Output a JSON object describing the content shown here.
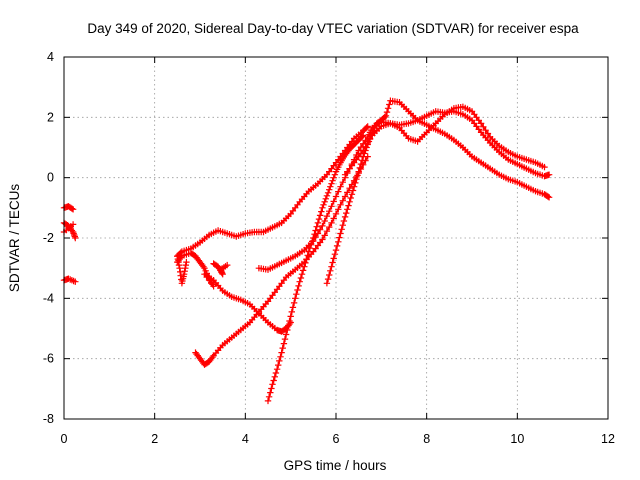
{
  "chart_data": {
    "type": "scatter",
    "title": "Day 349 of 2020, Sidereal Day-to-day VTEC variation (SDTVAR) for receiver espa",
    "xlabel": "GPS time / hours",
    "ylabel": "SDTVAR / TECUs",
    "xlim": [
      0,
      12
    ],
    "ylim": [
      -8,
      4
    ],
    "x_ticks": [
      0,
      2,
      4,
      6,
      8,
      10,
      12
    ],
    "y_ticks": [
      -8,
      -6,
      -4,
      -2,
      0,
      2,
      4
    ],
    "grid": true,
    "marker": "plus",
    "color": "#ff0000",
    "series": [
      {
        "x": [
          0.0,
          0.1,
          0.2
        ],
        "y": [
          -1.0,
          -0.95,
          -1.05
        ]
      },
      {
        "x": [
          0.0,
          0.1,
          0.2,
          0.25
        ],
        "y": [
          -1.5,
          -1.6,
          -1.8,
          -2.0
        ]
      },
      {
        "x": [
          0.0,
          0.2
        ],
        "y": [
          -1.8,
          -1.55
        ]
      },
      {
        "x": [
          0.0,
          0.1,
          0.25
        ],
        "y": [
          -3.4,
          -3.35,
          -3.45
        ]
      },
      {
        "x": [
          2.5,
          2.6,
          2.8,
          3.0,
          3.2,
          3.4,
          3.6,
          3.8,
          4.0,
          4.2,
          4.4,
          4.6,
          4.8,
          5.0,
          5.2,
          5.4,
          5.6,
          5.8,
          6.0,
          6.2,
          6.4,
          6.6,
          6.7
        ],
        "y": [
          -2.6,
          -2.45,
          -2.35,
          -2.15,
          -1.9,
          -1.75,
          -1.85,
          -1.95,
          -1.85,
          -1.8,
          -1.8,
          -1.65,
          -1.5,
          -1.2,
          -0.8,
          -0.45,
          -0.2,
          0.1,
          0.5,
          0.9,
          1.3,
          1.55,
          1.7
        ]
      },
      {
        "x": [
          2.5,
          2.6,
          2.8,
          2.9,
          3.0,
          3.1,
          3.2,
          3.3,
          3.1,
          3.3,
          3.5,
          3.7,
          3.9,
          4.1,
          4.3,
          4.5,
          4.7,
          4.8,
          4.9,
          5.0
        ],
        "y": [
          -2.8,
          -2.6,
          -2.5,
          -2.6,
          -2.8,
          -3.0,
          -3.35,
          -3.6,
          -3.2,
          -3.4,
          -3.75,
          -3.95,
          -4.05,
          -4.2,
          -4.5,
          -4.8,
          -5.05,
          -5.1,
          -5.0,
          -4.8
        ]
      },
      {
        "x": [
          2.5,
          2.55,
          2.6,
          2.65,
          2.7
        ],
        "y": [
          -2.6,
          -3.0,
          -3.5,
          -3.2,
          -2.8
        ]
      },
      {
        "x": [
          3.3,
          3.4,
          3.5,
          3.45,
          3.6
        ],
        "y": [
          -2.85,
          -2.95,
          -3.2,
          -3.05,
          -2.9
        ]
      },
      {
        "x": [
          2.9,
          3.0,
          3.1,
          3.2,
          3.3,
          3.5,
          3.7,
          3.9,
          4.1,
          4.3,
          4.5,
          4.7,
          4.9,
          5.1,
          5.3,
          5.5,
          5.7,
          5.9,
          6.1,
          6.3,
          6.5,
          6.7
        ],
        "y": [
          -5.8,
          -6.0,
          -6.2,
          -6.1,
          -5.9,
          -5.55,
          -5.3,
          -5.05,
          -4.8,
          -4.45,
          -4.1,
          -3.7,
          -3.3,
          -3.05,
          -2.8,
          -2.45,
          -2.05,
          -1.5,
          -0.9,
          -0.35,
          0.15,
          0.7
        ]
      },
      {
        "x": [
          4.5,
          4.6,
          4.7,
          4.8,
          4.9,
          5.0,
          5.1,
          5.2,
          5.3,
          5.4,
          5.5,
          5.6,
          5.7,
          5.8,
          5.9,
          6.0,
          6.1,
          6.2,
          6.3,
          6.4,
          6.5,
          6.6
        ],
        "y": [
          -7.4,
          -6.85,
          -6.35,
          -5.8,
          -5.2,
          -4.6,
          -4.0,
          -3.45,
          -2.95,
          -2.45,
          -2.0,
          -1.5,
          -1.0,
          -0.6,
          -0.2,
          0.2,
          0.5,
          0.75,
          0.95,
          1.1,
          1.25,
          1.4
        ]
      },
      {
        "x": [
          4.3,
          4.5,
          4.7,
          4.9,
          5.1,
          5.3,
          5.5,
          5.7,
          5.9,
          6.1,
          6.3,
          6.5,
          6.7,
          6.8,
          7.0,
          7.2,
          7.4,
          7.6,
          7.8,
          8.0,
          8.2,
          8.4,
          8.6,
          8.8,
          9.0,
          9.2,
          9.4,
          9.6,
          9.8,
          10.0,
          10.2,
          10.4,
          10.6,
          10.7
        ],
        "y": [
          -3.0,
          -3.05,
          -2.9,
          -2.75,
          -2.6,
          -2.4,
          -2.1,
          -1.6,
          -0.95,
          -0.3,
          0.3,
          0.9,
          1.35,
          1.65,
          1.85,
          1.8,
          1.75,
          1.8,
          1.9,
          2.05,
          2.2,
          2.15,
          2.2,
          2.1,
          1.9,
          1.5,
          1.15,
          0.85,
          0.6,
          0.45,
          0.3,
          0.15,
          0.05,
          0.1
        ]
      },
      {
        "x": [
          5.8,
          5.9,
          6.0,
          6.1,
          6.2,
          6.3,
          6.4,
          6.5,
          6.6,
          6.7,
          6.8,
          6.9,
          7.0,
          7.1,
          7.2,
          7.4,
          7.6,
          7.8,
          8.0,
          8.2,
          8.4,
          8.6,
          8.8,
          9.0,
          9.2,
          9.4,
          9.6,
          9.8,
          10.0,
          10.2,
          10.4,
          10.6,
          10.7
        ],
        "y": [
          -3.5,
          -2.95,
          -2.4,
          -1.85,
          -1.3,
          -0.8,
          -0.3,
          0.2,
          0.7,
          1.1,
          1.5,
          1.8,
          1.9,
          2.05,
          2.55,
          2.5,
          2.2,
          1.9,
          1.75,
          1.6,
          1.45,
          1.25,
          1.0,
          0.7,
          0.5,
          0.3,
          0.1,
          -0.05,
          -0.15,
          -0.3,
          -0.45,
          -0.55,
          -0.65
        ]
      },
      {
        "x": [
          6.2,
          6.4,
          6.6,
          6.8,
          7.0,
          7.2,
          7.4,
          7.6,
          7.8,
          8.0,
          8.2,
          8.4,
          8.6,
          8.8,
          9.0,
          9.2,
          9.4,
          9.6,
          9.8,
          10.0,
          10.2,
          10.4,
          10.6
        ],
        "y": [
          0.1,
          0.5,
          0.9,
          1.4,
          1.7,
          1.8,
          1.65,
          1.3,
          1.2,
          1.5,
          1.8,
          2.1,
          2.3,
          2.35,
          2.2,
          1.8,
          1.35,
          1.05,
          0.85,
          0.7,
          0.6,
          0.5,
          0.35
        ]
      }
    ]
  }
}
